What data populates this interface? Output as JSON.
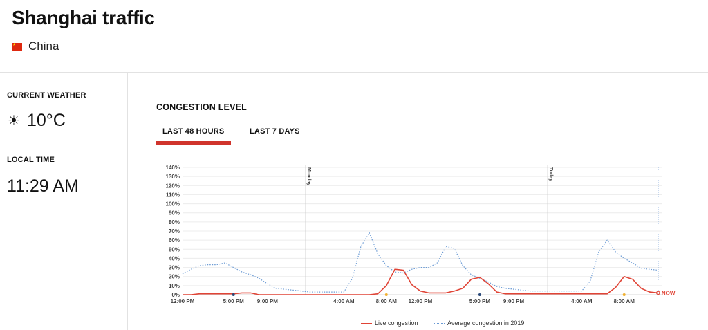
{
  "header": {
    "title": "Shanghai traffic",
    "country": "China"
  },
  "sidebar": {
    "weather_label": "CURRENT WEATHER",
    "weather_icon": "sun-icon",
    "temperature": "10°C",
    "time_label": "LOCAL TIME",
    "local_time": "11:29 AM"
  },
  "main": {
    "section_title": "CONGESTION LEVEL",
    "tabs": [
      {
        "label": "LAST 48 HOURS",
        "active": true
      },
      {
        "label": "LAST 7 DAYS",
        "active": false
      }
    ]
  },
  "colors": {
    "live": "#e04436",
    "average": "#6a9ad4",
    "accent": "#d0342c",
    "grid": "#ececec"
  },
  "chart_data": {
    "type": "line",
    "x_unit": "hours",
    "x": [
      0,
      1,
      2,
      3,
      4,
      5,
      6,
      7,
      8,
      9,
      10,
      11,
      12,
      13,
      14,
      15,
      16,
      17,
      18,
      19,
      20,
      21,
      22,
      23,
      24,
      25,
      26,
      27,
      28,
      29,
      30,
      31,
      32,
      33,
      34,
      35,
      36,
      37,
      38,
      39,
      40,
      41,
      42,
      43,
      44,
      45,
      46,
      47,
      48,
      49,
      50,
      51,
      52,
      53,
      54,
      55,
      56
    ],
    "xlim": [
      0,
      56.5
    ],
    "ylim": [
      0,
      140
    ],
    "yticks": [
      0,
      10,
      20,
      30,
      40,
      50,
      60,
      70,
      80,
      90,
      100,
      110,
      120,
      130,
      140
    ],
    "ytick_suffix": "%",
    "xtick_labels": [
      {
        "x": 0,
        "label": "12:00 PM"
      },
      {
        "x": 6,
        "label": "5:00 PM"
      },
      {
        "x": 10,
        "label": "9:00 PM"
      },
      {
        "x": 19,
        "label": "4:00 AM"
      },
      {
        "x": 24,
        "label": "8:00 AM"
      },
      {
        "x": 28,
        "label": "12:00 PM"
      },
      {
        "x": 35,
        "label": "5:00 PM"
      },
      {
        "x": 39,
        "label": "9:00 PM"
      },
      {
        "x": 47,
        "label": "4:00 AM"
      },
      {
        "x": 52,
        "label": "8:00 AM"
      }
    ],
    "day_markers": [
      {
        "x": 14.5,
        "label": "Monday"
      },
      {
        "x": 43,
        "label": "Today"
      }
    ],
    "now": {
      "x": 56,
      "value": 2,
      "label": "NOW"
    },
    "dots": [
      {
        "x": 6,
        "color": "#2b4a7a"
      },
      {
        "x": 24,
        "color": "#f0b030"
      },
      {
        "x": 35,
        "color": "#2b4a7a"
      },
      {
        "x": 52,
        "color": "#f0b030"
      }
    ],
    "series": [
      {
        "name": "Live congestion",
        "values": [
          0,
          0,
          1,
          1,
          1,
          1,
          1,
          2,
          2,
          0,
          0,
          0,
          0,
          0,
          0,
          0,
          0,
          0,
          0,
          0,
          0,
          0,
          0,
          1,
          10,
          28,
          27,
          11,
          4,
          2,
          2,
          2,
          4,
          7,
          17,
          19,
          12,
          3,
          1,
          1,
          1,
          1,
          1,
          1,
          1,
          1,
          1,
          1,
          1,
          1,
          1,
          8,
          20,
          17,
          7,
          3,
          2
        ]
      },
      {
        "name": "Average congestion in 2019",
        "values": [
          23,
          28,
          32,
          33,
          33,
          35,
          30,
          25,
          22,
          18,
          12,
          7,
          6,
          5,
          4,
          3,
          3,
          3,
          3,
          3,
          18,
          53,
          68,
          45,
          32,
          25,
          24,
          28,
          30,
          30,
          35,
          53,
          51,
          32,
          22,
          18,
          14,
          9,
          7,
          6,
          5,
          4,
          4,
          4,
          4,
          4,
          4,
          4,
          15,
          47,
          60,
          47,
          40,
          35,
          29,
          28,
          27
        ]
      }
    ],
    "legend": {
      "position": "bottom-center"
    }
  }
}
